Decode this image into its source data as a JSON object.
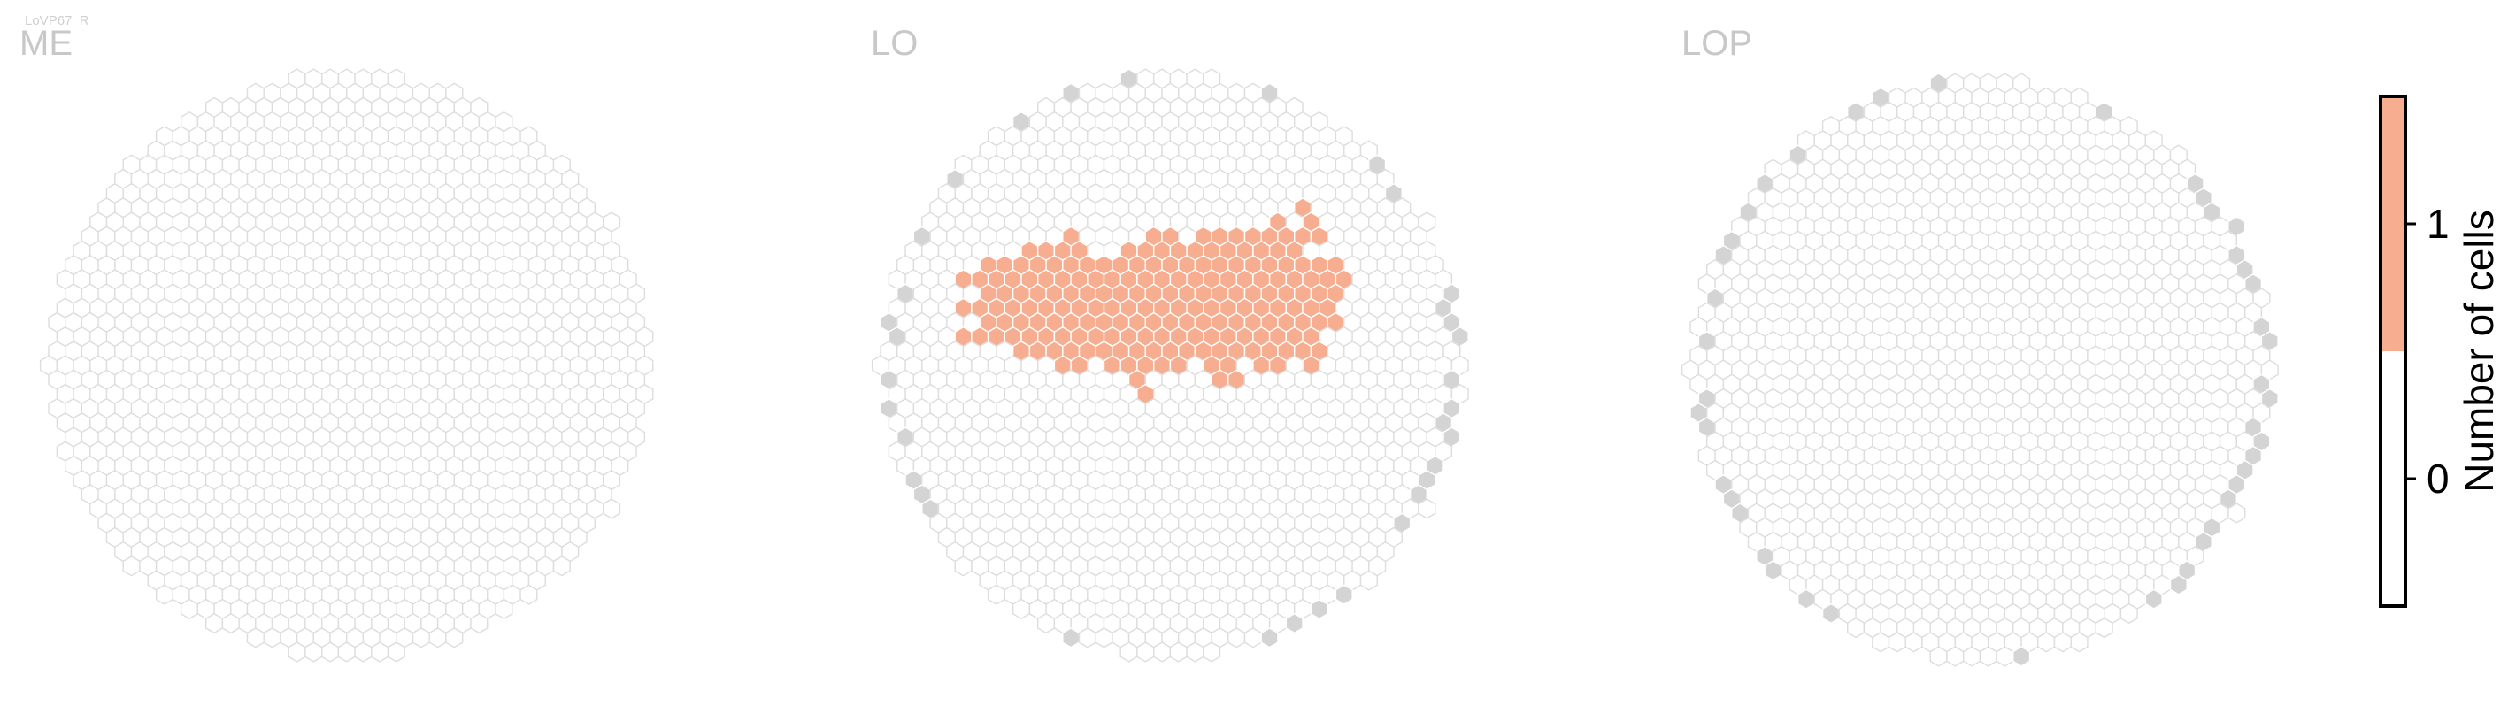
{
  "cell_type_label": "LoVP67_R",
  "panels": [
    {
      "title": "ME"
    },
    {
      "title": "LO"
    },
    {
      "title": "LOP"
    }
  ],
  "colorbar": {
    "label": "Number of cells",
    "ticks": [
      "0",
      "1"
    ],
    "colors": {
      "zero": "#ffffff",
      "one": "#f7ad90"
    },
    "range": [
      -0.5,
      1.5
    ]
  },
  "colors": {
    "hex_outline": "#dddddd",
    "edge_column": "#d4d4d4",
    "count_one": "#f7ad90",
    "title_gray": "#c8c8c8"
  },
  "chart_data": {
    "type": "heatmap",
    "description_values": "hexagonal column maps; value = number of LoVP67_R cells innervating each column",
    "value_scale": [
      0,
      1
    ],
    "panels": [
      {
        "title": "ME",
        "count_1_rows": []
      },
      {
        "title": "LO",
        "count_1_rows": [
          {
            "row": 9,
            "cols": [
              21
            ]
          },
          {
            "row": 10,
            "cols": [
              20,
              22
            ]
          },
          {
            "row": 11,
            "cols": [
              7,
              12,
              13,
              15,
              16,
              17,
              18,
              19,
              20,
              21,
              22
            ]
          },
          {
            "row": 12,
            "cols": [
              5,
              6,
              7,
              8,
              11,
              12,
              13,
              14,
              15,
              16,
              17,
              18,
              19,
              20,
              21
            ]
          },
          {
            "row": 13,
            "cols": [
              2,
              3,
              4,
              5,
              6,
              7,
              8,
              9,
              10,
              11,
              12,
              13,
              14,
              15,
              16,
              17,
              18,
              19,
              20,
              21,
              22,
              23
            ]
          },
          {
            "row": 14,
            "cols": [
              1,
              2,
              3,
              4,
              5,
              6,
              7,
              8,
              9,
              10,
              11,
              12,
              13,
              14,
              15,
              16,
              17,
              18,
              19,
              20,
              21,
              22,
              23,
              24
            ]
          },
          {
            "row": 15,
            "cols": [
              2,
              3,
              4,
              5,
              6,
              7,
              8,
              9,
              10,
              11,
              12,
              13,
              14,
              15,
              16,
              17,
              18,
              19,
              20,
              21,
              22,
              23
            ]
          },
          {
            "row": 16,
            "cols": [
              1,
              2,
              3,
              4,
              5,
              6,
              7,
              8,
              9,
              10,
              11,
              12,
              13,
              14,
              15,
              16,
              17,
              18,
              19,
              20,
              21,
              22,
              23
            ]
          },
          {
            "row": 17,
            "cols": [
              2,
              3,
              4,
              5,
              6,
              7,
              8,
              9,
              10,
              11,
              12,
              13,
              14,
              15,
              16,
              17,
              18,
              19,
              20,
              21,
              22,
              23
            ]
          },
          {
            "row": 18,
            "cols": [
              1,
              2,
              3,
              4,
              5,
              6,
              7,
              8,
              9,
              10,
              11,
              12,
              13,
              14,
              15,
              16,
              17,
              18,
              19,
              20,
              21,
              22
            ]
          },
          {
            "row": 19,
            "cols": [
              4,
              5,
              6,
              7,
              8,
              9,
              10,
              11,
              12,
              13,
              14,
              15,
              16,
              17,
              18,
              19,
              20,
              21,
              22
            ]
          },
          {
            "row": 20,
            "cols": [
              7,
              8,
              10,
              11,
              12,
              13,
              14,
              16,
              17,
              19,
              20,
              22
            ]
          },
          {
            "row": 21,
            "cols": [
              11,
              16,
              17
            ]
          },
          {
            "row": 22,
            "cols": [
              12
            ]
          }
        ]
      },
      {
        "title": "LOP",
        "count_1_rows": []
      }
    ]
  }
}
